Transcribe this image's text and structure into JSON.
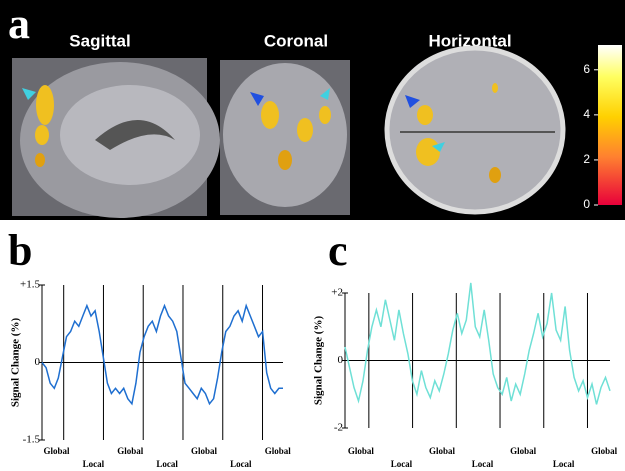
{
  "panel_a": {
    "label": "a",
    "views": [
      "Sagittal",
      "Coronal",
      "Horizontal"
    ],
    "colorbar": {
      "ylim": [
        0,
        7.1
      ],
      "yticks": [
        0,
        2,
        4,
        6
      ]
    }
  },
  "chart_data": [
    {
      "type": "line",
      "label": "b",
      "y_label": "Signal Change (%)",
      "color": "#1f6fd0",
      "ylim": [
        -1.5,
        1.5
      ],
      "yticks": [
        {
          "value": 1.5,
          "label": "+1.5"
        },
        0,
        -1.5
      ],
      "blocks": [
        "Global",
        "Local",
        "Global",
        "Local",
        "Global",
        "Local",
        "Global"
      ],
      "values": [
        0,
        -0.1,
        -0.4,
        -0.5,
        -0.3,
        0.1,
        0.5,
        0.6,
        0.8,
        0.7,
        0.9,
        1.1,
        0.9,
        1.0,
        0.6,
        0.1,
        -0.4,
        -0.6,
        -0.5,
        -0.6,
        -0.5,
        -0.7,
        -0.8,
        -0.4,
        0.2,
        0.5,
        0.7,
        0.8,
        0.6,
        0.9,
        1.1,
        0.9,
        0.8,
        0.6,
        0.1,
        -0.4,
        -0.5,
        -0.6,
        -0.7,
        -0.5,
        -0.6,
        -0.8,
        -0.7,
        -0.3,
        0.2,
        0.6,
        0.7,
        0.9,
        1.0,
        0.8,
        1.1,
        0.9,
        0.7,
        0.5,
        0.6,
        -0.2,
        -0.5,
        -0.6,
        -0.5,
        -0.5
      ]
    },
    {
      "type": "line",
      "label": "c",
      "y_label": "Signal Change (%)",
      "color": "#6fe0d6",
      "ylim": [
        -2,
        2
      ],
      "yticks": [
        {
          "value": 2,
          "label": "+2"
        },
        0,
        -2
      ],
      "blocks": [
        "Global",
        "Local",
        "Global",
        "Local",
        "Global",
        "Local",
        "Global"
      ],
      "values": [
        0.4,
        -0.2,
        -0.8,
        -1.2,
        -0.6,
        0.3,
        1.0,
        1.5,
        1.0,
        1.8,
        1.2,
        0.6,
        1.5,
        0.8,
        0.2,
        -0.6,
        -1.0,
        -0.3,
        -0.8,
        -1.1,
        -0.6,
        -0.9,
        -0.4,
        0.2,
        0.9,
        1.4,
        0.8,
        1.2,
        2.3,
        1.0,
        0.7,
        1.5,
        0.6,
        -0.4,
        -0.8,
        -1.0,
        -0.5,
        -1.2,
        -0.7,
        -1.0,
        -0.4,
        0.3,
        0.8,
        1.4,
        0.7,
        1.1,
        2.0,
        0.9,
        0.6,
        1.6,
        0.3,
        -0.5,
        -0.9,
        -0.6,
        -1.1,
        -0.7,
        -1.3,
        -0.8,
        -0.5,
        -0.9
      ]
    }
  ]
}
